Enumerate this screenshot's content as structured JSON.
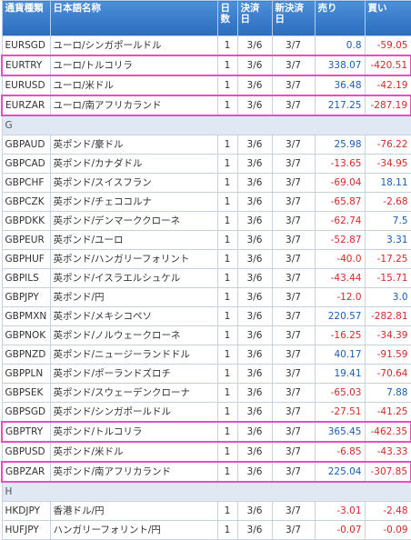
{
  "headers": [
    "通貨種類",
    "日本語名称",
    "日数",
    "決済日",
    "新決済日",
    "売り",
    "買い"
  ],
  "rows": [
    {
      "type": "row",
      "code": "EURSGD",
      "name": "ユーロ/シンガポールドル",
      "days": "1",
      "settle": "3/6",
      "newsettle": "3/7",
      "sell": "0.8",
      "buy": "-59.05",
      "hl": false
    },
    {
      "type": "row",
      "code": "EURTRY",
      "name": "ユーロ/トルコリラ",
      "days": "1",
      "settle": "3/6",
      "newsettle": "3/7",
      "sell": "338.07",
      "buy": "-420.51",
      "hl": true
    },
    {
      "type": "row",
      "code": "EURUSD",
      "name": "ユーロ/米ドル",
      "days": "1",
      "settle": "3/6",
      "newsettle": "3/7",
      "sell": "36.48",
      "buy": "-42.19",
      "hl": false
    },
    {
      "type": "row",
      "code": "EURZAR",
      "name": "ユーロ/南アフリカランド",
      "days": "1",
      "settle": "3/6",
      "newsettle": "3/7",
      "sell": "217.25",
      "buy": "-287.19",
      "hl": true
    },
    {
      "type": "group",
      "label": "G"
    },
    {
      "type": "row",
      "code": "GBPAUD",
      "name": "英ポンド/豪ドル",
      "days": "1",
      "settle": "3/6",
      "newsettle": "3/7",
      "sell": "25.98",
      "buy": "-76.22",
      "hl": false
    },
    {
      "type": "row",
      "code": "GBPCAD",
      "name": "英ポンド/カナダドル",
      "days": "1",
      "settle": "3/6",
      "newsettle": "3/7",
      "sell": "-13.65",
      "buy": "-34.95",
      "hl": false
    },
    {
      "type": "row",
      "code": "GBPCHF",
      "name": "英ポンド/スイスフラン",
      "days": "1",
      "settle": "3/6",
      "newsettle": "3/7",
      "sell": "-69.04",
      "buy": "18.11",
      "hl": false
    },
    {
      "type": "row",
      "code": "GBPCZK",
      "name": "英ポンド/チェココルナ",
      "days": "1",
      "settle": "3/6",
      "newsettle": "3/7",
      "sell": "-65.87",
      "buy": "-2.68",
      "hl": false
    },
    {
      "type": "row",
      "code": "GBPDKK",
      "name": "英ポンド/デンマーククローネ",
      "days": "1",
      "settle": "3/6",
      "newsettle": "3/7",
      "sell": "-62.74",
      "buy": "7.5",
      "hl": false
    },
    {
      "type": "row",
      "code": "GBPEUR",
      "name": "英ポンド/ユーロ",
      "days": "1",
      "settle": "3/6",
      "newsettle": "3/7",
      "sell": "-52.87",
      "buy": "3.31",
      "hl": false
    },
    {
      "type": "row",
      "code": "GBPHUF",
      "name": "英ポンド/ハンガリーフォリント",
      "days": "1",
      "settle": "3/6",
      "newsettle": "3/7",
      "sell": "-40.0",
      "buy": "-17.25",
      "hl": false
    },
    {
      "type": "row",
      "code": "GBPILS",
      "name": "英ポンド/イスラエルシュケル",
      "days": "1",
      "settle": "3/6",
      "newsettle": "3/7",
      "sell": "-43.44",
      "buy": "-15.71",
      "hl": false
    },
    {
      "type": "row",
      "code": "GBPJPY",
      "name": "英ポンド/円",
      "days": "1",
      "settle": "3/6",
      "newsettle": "3/7",
      "sell": "-12.0",
      "buy": "3.0",
      "hl": false
    },
    {
      "type": "row",
      "code": "GBPMXN",
      "name": "英ポンド/メキシコペソ",
      "days": "1",
      "settle": "3/6",
      "newsettle": "3/7",
      "sell": "220.57",
      "buy": "-282.81",
      "hl": false
    },
    {
      "type": "row",
      "code": "GBPNOK",
      "name": "英ポンド/ノルウェークローネ",
      "days": "1",
      "settle": "3/6",
      "newsettle": "3/7",
      "sell": "-16.25",
      "buy": "-34.39",
      "hl": false
    },
    {
      "type": "row",
      "code": "GBPNZD",
      "name": "英ポンド/ニュージーランドドル",
      "days": "1",
      "settle": "3/6",
      "newsettle": "3/7",
      "sell": "40.17",
      "buy": "-91.59",
      "hl": false
    },
    {
      "type": "row",
      "code": "GBPPLN",
      "name": "英ポンド/ポーランドズロチ",
      "days": "1",
      "settle": "3/6",
      "newsettle": "3/7",
      "sell": "19.41",
      "buy": "-70.64",
      "hl": false
    },
    {
      "type": "row",
      "code": "GBPSEK",
      "name": "英ポンド/スウェーデンクローナ",
      "days": "1",
      "settle": "3/6",
      "newsettle": "3/7",
      "sell": "-65.03",
      "buy": "7.88",
      "hl": false
    },
    {
      "type": "row",
      "code": "GBPSGD",
      "name": "英ポンド/シンガポールドル",
      "days": "1",
      "settle": "3/6",
      "newsettle": "3/7",
      "sell": "-27.51",
      "buy": "-41.25",
      "hl": false
    },
    {
      "type": "row",
      "code": "GBPTRY",
      "name": "英ポンド/トルコリラ",
      "days": "1",
      "settle": "3/6",
      "newsettle": "3/7",
      "sell": "365.45",
      "buy": "-462.35",
      "hl": true
    },
    {
      "type": "row",
      "code": "GBPUSD",
      "name": "英ポンド/米ドル",
      "days": "1",
      "settle": "3/6",
      "newsettle": "3/7",
      "sell": "-6.85",
      "buy": "-43.33",
      "hl": false
    },
    {
      "type": "row",
      "code": "GBPZAR",
      "name": "英ポンド/南アフリカランド",
      "days": "1",
      "settle": "3/6",
      "newsettle": "3/7",
      "sell": "225.04",
      "buy": "-307.85",
      "hl": true
    },
    {
      "type": "group",
      "label": "H"
    },
    {
      "type": "row",
      "code": "HKDJPY",
      "name": "香港ドル/円",
      "days": "1",
      "settle": "3/6",
      "newsettle": "3/7",
      "sell": "-3.01",
      "buy": "-2.48",
      "hl": false
    },
    {
      "type": "row",
      "code": "HUFJPY",
      "name": "ハンガリーフォリント/円",
      "days": "1",
      "settle": "3/6",
      "newsettle": "3/7",
      "sell": "-0.07",
      "buy": "-0.09",
      "hl": false
    }
  ],
  "colors": {
    "positive": "#1a5fb4",
    "negative": "#d42a2a",
    "highlight": "#e84fc2",
    "header": "#3a7bcf"
  }
}
